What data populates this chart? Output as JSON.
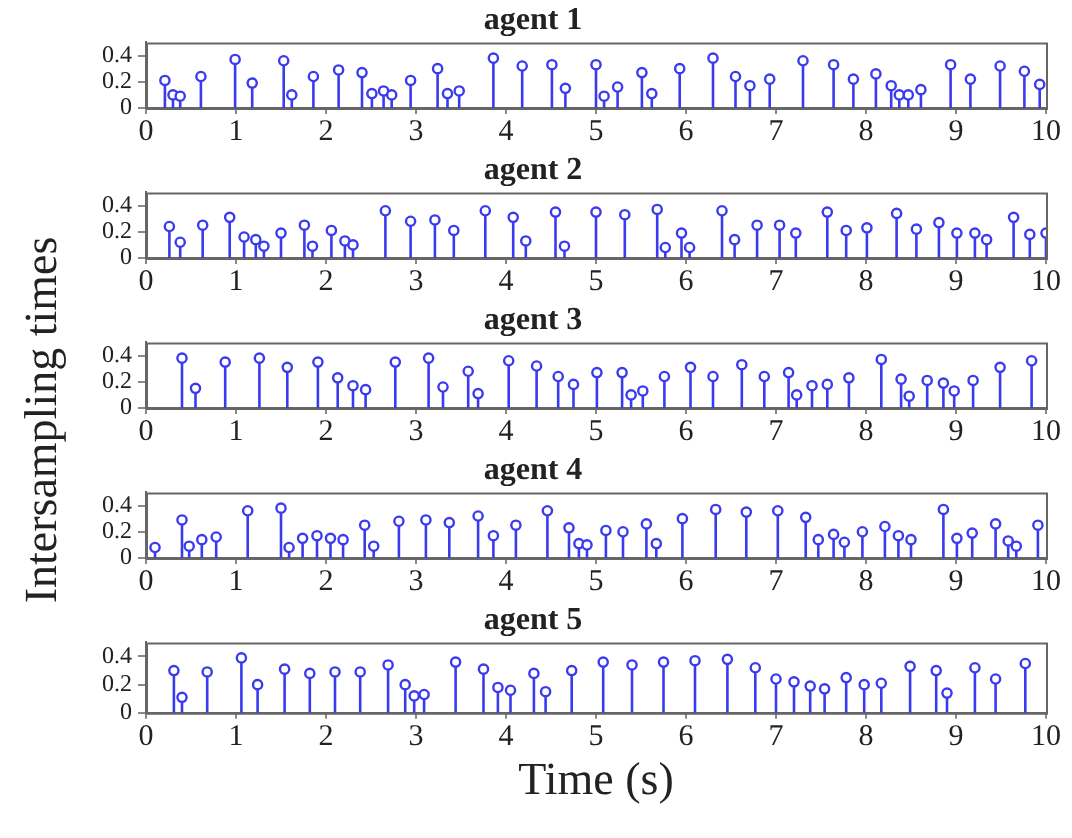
{
  "chart_data": [
    {
      "type": "lollipop",
      "title": "agent 1",
      "color": "#3a3aee",
      "marker": "circle",
      "xlim": [
        0,
        10
      ],
      "xticks": [
        0,
        1,
        2,
        3,
        4,
        5,
        6,
        7,
        8,
        9,
        10
      ],
      "ylim": [
        0,
        0.5
      ],
      "yticks": [
        0,
        0.2,
        0.4
      ],
      "grid": false,
      "x": [
        0.21,
        0.3,
        0.38,
        0.61,
        0.99,
        1.18,
        1.53,
        1.62,
        1.86,
        2.14,
        2.4,
        2.51,
        2.64,
        2.73,
        2.94,
        3.24,
        3.35,
        3.48,
        3.86,
        4.18,
        4.51,
        4.66,
        5.0,
        5.09,
        5.24,
        5.51,
        5.62,
        5.93,
        6.3,
        6.55,
        6.71,
        6.93,
        7.3,
        7.64,
        7.86,
        8.11,
        8.28,
        8.37,
        8.47,
        8.61,
        8.94,
        9.16,
        9.49,
        9.76,
        9.93
      ],
      "values": [
        0.21,
        0.1,
        0.09,
        0.24,
        0.37,
        0.19,
        0.36,
        0.1,
        0.24,
        0.29,
        0.27,
        0.11,
        0.13,
        0.1,
        0.21,
        0.3,
        0.11,
        0.13,
        0.38,
        0.32,
        0.33,
        0.15,
        0.33,
        0.09,
        0.16,
        0.27,
        0.11,
        0.3,
        0.38,
        0.24,
        0.17,
        0.22,
        0.36,
        0.33,
        0.22,
        0.26,
        0.17,
        0.1,
        0.1,
        0.14,
        0.33,
        0.22,
        0.32,
        0.28,
        0.18
      ]
    },
    {
      "type": "lollipop",
      "title": "agent 2",
      "color": "#3a3aee",
      "marker": "circle",
      "xlim": [
        0,
        10
      ],
      "xticks": [
        0,
        1,
        2,
        3,
        4,
        5,
        6,
        7,
        8,
        9,
        10
      ],
      "ylim": [
        0,
        0.5
      ],
      "yticks": [
        0,
        0.2,
        0.4
      ],
      "grid": false,
      "x": [
        0.26,
        0.38,
        0.63,
        0.93,
        1.09,
        1.22,
        1.31,
        1.5,
        1.76,
        1.85,
        2.06,
        2.21,
        2.3,
        2.66,
        2.94,
        3.21,
        3.42,
        3.77,
        4.08,
        4.22,
        4.55,
        4.65,
        5.0,
        5.32,
        5.68,
        5.77,
        5.95,
        6.04,
        6.4,
        6.54,
        6.79,
        7.04,
        7.22,
        7.57,
        7.78,
        8.01,
        8.34,
        8.56,
        8.81,
        9.01,
        9.21,
        9.34,
        9.64,
        9.82,
        10.0
      ],
      "values": [
        0.24,
        0.12,
        0.25,
        0.31,
        0.16,
        0.14,
        0.09,
        0.19,
        0.25,
        0.09,
        0.21,
        0.13,
        0.1,
        0.36,
        0.28,
        0.29,
        0.21,
        0.36,
        0.31,
        0.13,
        0.35,
        0.09,
        0.35,
        0.33,
        0.37,
        0.08,
        0.19,
        0.08,
        0.36,
        0.14,
        0.25,
        0.25,
        0.19,
        0.35,
        0.21,
        0.23,
        0.34,
        0.22,
        0.27,
        0.19,
        0.19,
        0.14,
        0.31,
        0.18,
        0.19
      ]
    },
    {
      "type": "lollipop",
      "title": "agent 3",
      "ylabel": "Intersampling times",
      "color": "#3a3aee",
      "marker": "circle",
      "xlim": [
        0,
        10
      ],
      "xticks": [
        0,
        1,
        2,
        3,
        4,
        5,
        6,
        7,
        8,
        9,
        10
      ],
      "ylim": [
        0,
        0.5
      ],
      "yticks": [
        0,
        0.2,
        0.4
      ],
      "grid": false,
      "x": [
        0.4,
        0.55,
        0.88,
        1.26,
        1.57,
        1.91,
        2.13,
        2.3,
        2.44,
        2.77,
        3.14,
        3.3,
        3.58,
        3.69,
        4.03,
        4.34,
        4.58,
        4.75,
        5.01,
        5.29,
        5.39,
        5.52,
        5.76,
        6.05,
        6.3,
        6.62,
        6.87,
        7.14,
        7.23,
        7.4,
        7.57,
        7.81,
        8.17,
        8.39,
        8.48,
        8.68,
        8.86,
        8.98,
        9.19,
        9.49,
        9.84
      ],
      "values": [
        0.38,
        0.15,
        0.35,
        0.38,
        0.31,
        0.35,
        0.23,
        0.17,
        0.14,
        0.35,
        0.38,
        0.16,
        0.28,
        0.11,
        0.36,
        0.32,
        0.24,
        0.18,
        0.27,
        0.27,
        0.1,
        0.13,
        0.24,
        0.31,
        0.24,
        0.33,
        0.24,
        0.27,
        0.1,
        0.17,
        0.18,
        0.23,
        0.37,
        0.22,
        0.09,
        0.21,
        0.19,
        0.13,
        0.21,
        0.31,
        0.36
      ]
    },
    {
      "type": "lollipop",
      "title": "agent 4",
      "color": "#3a3aee",
      "marker": "circle",
      "xlim": [
        0,
        10
      ],
      "xticks": [
        0,
        1,
        2,
        3,
        4,
        5,
        6,
        7,
        8,
        9,
        10
      ],
      "ylim": [
        0,
        0.5
      ],
      "yticks": [
        0,
        0.2,
        0.4
      ],
      "grid": false,
      "x": [
        0.1,
        0.4,
        0.48,
        0.62,
        0.78,
        1.13,
        1.5,
        1.59,
        1.74,
        1.9,
        2.05,
        2.19,
        2.43,
        2.53,
        2.81,
        3.11,
        3.37,
        3.69,
        3.86,
        4.11,
        4.46,
        4.7,
        4.81,
        4.9,
        5.11,
        5.3,
        5.56,
        5.67,
        5.96,
        6.33,
        6.67,
        7.02,
        7.33,
        7.47,
        7.64,
        7.76,
        7.96,
        8.21,
        8.36,
        8.5,
        8.86,
        9.01,
        9.18,
        9.44,
        9.58,
        9.67,
        9.91
      ],
      "values": [
        0.08,
        0.29,
        0.09,
        0.14,
        0.16,
        0.36,
        0.38,
        0.08,
        0.15,
        0.17,
        0.15,
        0.14,
        0.25,
        0.09,
        0.28,
        0.29,
        0.27,
        0.32,
        0.17,
        0.25,
        0.36,
        0.23,
        0.11,
        0.1,
        0.21,
        0.2,
        0.26,
        0.11,
        0.3,
        0.37,
        0.35,
        0.36,
        0.31,
        0.14,
        0.18,
        0.12,
        0.2,
        0.24,
        0.17,
        0.14,
        0.37,
        0.15,
        0.19,
        0.26,
        0.13,
        0.09,
        0.25
      ]
    },
    {
      "type": "lollipop",
      "title": "agent 5",
      "xlabel": "Time (s)",
      "color": "#3a3aee",
      "marker": "circle",
      "xlim": [
        0,
        10
      ],
      "xticks": [
        0,
        1,
        2,
        3,
        4,
        5,
        6,
        7,
        8,
        9,
        10
      ],
      "ylim": [
        0,
        0.5
      ],
      "yticks": [
        0,
        0.2,
        0.4
      ],
      "grid": false,
      "x": [
        0.31,
        0.4,
        0.68,
        1.06,
        1.24,
        1.54,
        1.82,
        2.1,
        2.38,
        2.69,
        2.88,
        2.98,
        3.09,
        3.44,
        3.75,
        3.91,
        4.05,
        4.31,
        4.44,
        4.73,
        5.08,
        5.4,
        5.75,
        6.1,
        6.46,
        6.77,
        7.0,
        7.2,
        7.38,
        7.54,
        7.78,
        7.98,
        8.17,
        8.49,
        8.78,
        8.9,
        9.21,
        9.44,
        9.77
      ],
      "values": [
        0.3,
        0.11,
        0.29,
        0.39,
        0.2,
        0.31,
        0.28,
        0.29,
        0.29,
        0.34,
        0.2,
        0.12,
        0.13,
        0.36,
        0.31,
        0.18,
        0.16,
        0.28,
        0.15,
        0.3,
        0.36,
        0.34,
        0.36,
        0.37,
        0.38,
        0.32,
        0.24,
        0.22,
        0.19,
        0.17,
        0.25,
        0.2,
        0.21,
        0.33,
        0.3,
        0.14,
        0.32,
        0.24,
        0.35
      ]
    }
  ]
}
